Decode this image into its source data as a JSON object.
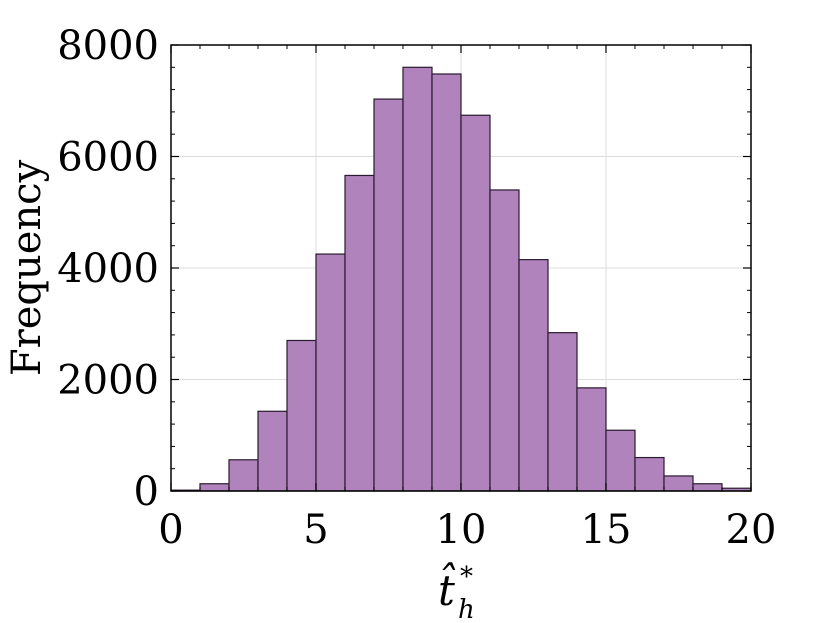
{
  "chart_data": {
    "type": "bar",
    "subtype": "histogram",
    "bin_width": 1,
    "bins": [
      {
        "start": 0,
        "end": 1,
        "value": 15
      },
      {
        "start": 1,
        "end": 2,
        "value": 130
      },
      {
        "start": 2,
        "end": 3,
        "value": 560
      },
      {
        "start": 3,
        "end": 4,
        "value": 1430
      },
      {
        "start": 4,
        "end": 5,
        "value": 2700
      },
      {
        "start": 5,
        "end": 6,
        "value": 4250
      },
      {
        "start": 6,
        "end": 7,
        "value": 5660
      },
      {
        "start": 7,
        "end": 8,
        "value": 7030
      },
      {
        "start": 8,
        "end": 9,
        "value": 7600
      },
      {
        "start": 9,
        "end": 10,
        "value": 7480
      },
      {
        "start": 10,
        "end": 11,
        "value": 6740
      },
      {
        "start": 11,
        "end": 12,
        "value": 5400
      },
      {
        "start": 12,
        "end": 13,
        "value": 4150
      },
      {
        "start": 13,
        "end": 14,
        "value": 2840
      },
      {
        "start": 14,
        "end": 15,
        "value": 1850
      },
      {
        "start": 15,
        "end": 16,
        "value": 1090
      },
      {
        "start": 16,
        "end": 17,
        "value": 600
      },
      {
        "start": 17,
        "end": 18,
        "value": 270
      },
      {
        "start": 18,
        "end": 19,
        "value": 130
      },
      {
        "start": 19,
        "end": 20,
        "value": 50
      }
    ],
    "xlabel": {
      "base": "t̂",
      "sup": "*",
      "sub": "h"
    },
    "ylabel": "Frequency",
    "xlim": [
      0,
      20
    ],
    "ylim": [
      0,
      8000
    ],
    "xticks": [
      0,
      5,
      10,
      15,
      20
    ],
    "yticks": [
      0,
      2000,
      4000,
      6000,
      8000
    ],
    "grid": true,
    "bar_color": "#b083bd",
    "edge_color": "#2a1a2e"
  }
}
